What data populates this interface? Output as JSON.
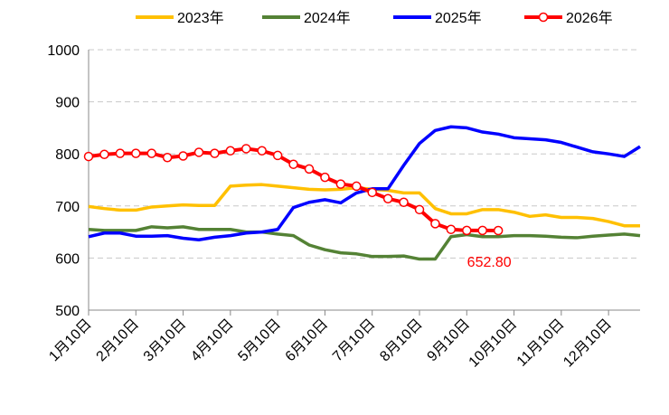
{
  "chart_data": {
    "type": "line",
    "categories": [
      "1月10日",
      null,
      null,
      "2月10日",
      null,
      null,
      "3月10日",
      null,
      null,
      "4月10日",
      null,
      null,
      "5月10日",
      null,
      null,
      "6月10日",
      null,
      null,
      "7月10日",
      null,
      null,
      "8月10日",
      null,
      null,
      "9月10日",
      null,
      null,
      "10月10日",
      null,
      null,
      "11月10日",
      null,
      null,
      "12月10日",
      null,
      null
    ],
    "series": [
      {
        "name": "2023年",
        "color": "#FFC000",
        "marker": false,
        "values": [
          699,
          695,
          692,
          692,
          698,
          700,
          702,
          701,
          701,
          738,
          740,
          741,
          738,
          735,
          732,
          731,
          732,
          735,
          732,
          730,
          725,
          725,
          695,
          685,
          685,
          693,
          693,
          688,
          680,
          683,
          678,
          678,
          676,
          670,
          662,
          662
        ]
      },
      {
        "name": "2024年",
        "color": "#548235",
        "marker": false,
        "values": [
          655,
          653,
          653,
          653,
          660,
          658,
          660,
          655,
          655,
          655,
          650,
          650,
          646,
          643,
          625,
          616,
          610,
          608,
          603,
          603,
          604,
          598,
          598,
          641,
          645,
          641,
          641,
          643,
          643,
          642,
          640,
          639,
          642,
          644,
          646,
          643
        ]
      },
      {
        "name": "2025年",
        "color": "#0000FF",
        "marker": false,
        "values": [
          641,
          648,
          648,
          642,
          642,
          643,
          638,
          635,
          640,
          643,
          648,
          650,
          655,
          697,
          707,
          712,
          706,
          725,
          733,
          733,
          778,
          820,
          845,
          852,
          850,
          842,
          838,
          831,
          829,
          827,
          822,
          813,
          804,
          800,
          795,
          814
        ]
      },
      {
        "name": "2026年",
        "color": "#FF0000",
        "marker": true,
        "values": [
          795,
          799,
          801,
          801,
          801,
          793,
          796,
          803,
          801,
          806,
          810,
          806,
          797,
          780,
          771,
          755,
          742,
          738,
          726,
          714,
          707,
          693,
          666,
          655,
          653,
          653,
          652.8,
          null,
          null,
          null,
          null,
          null,
          null,
          null,
          null,
          null
        ]
      }
    ],
    "annotations": [
      {
        "text": "652.80",
        "x": 26,
        "y": 652.8
      }
    ],
    "ylim": [
      500,
      1000
    ],
    "yticks": [
      500,
      600,
      700,
      800,
      900,
      1000
    ],
    "grid": true,
    "legend": "top"
  }
}
